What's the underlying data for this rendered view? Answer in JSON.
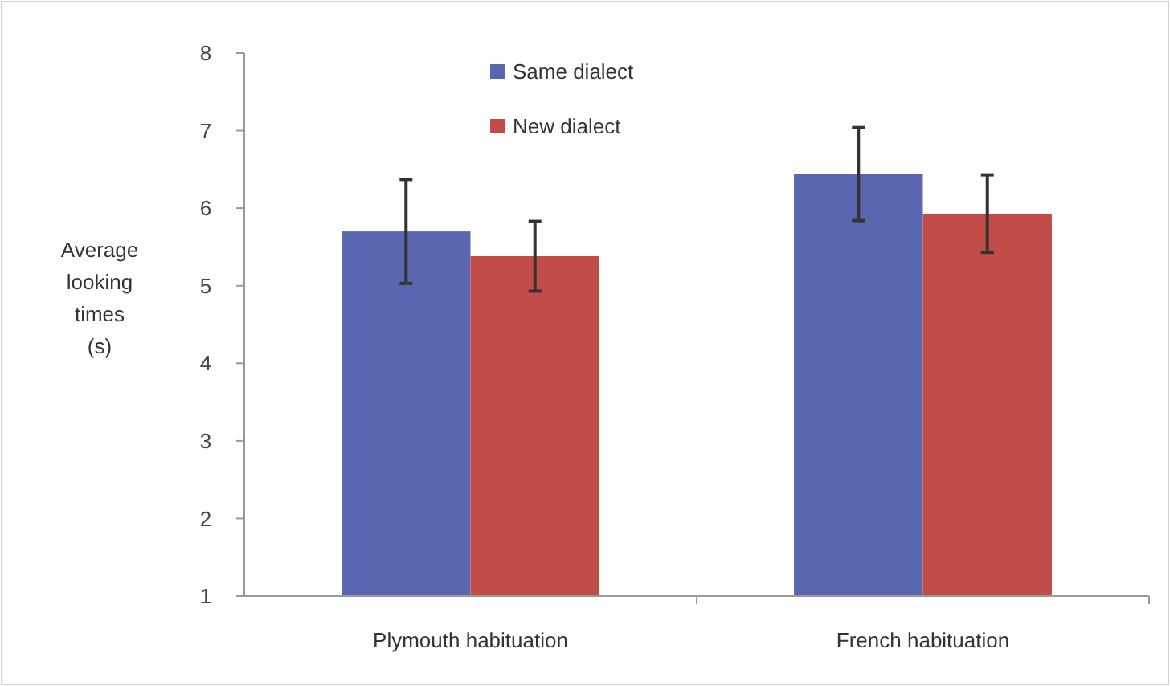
{
  "chart_data": {
    "type": "bar",
    "ylabel": "Average looking times (s)",
    "categories": [
      "Plymouth habituation",
      "French habituation"
    ],
    "series": [
      {
        "name": "Same dialect",
        "color": "#5b66b0",
        "values": [
          5.7,
          6.44
        ],
        "errors": [
          0.67,
          0.6
        ]
      },
      {
        "name": "New dialect",
        "color": "#c24d48",
        "values": [
          5.38,
          5.93
        ],
        "errors": [
          0.45,
          0.5
        ]
      }
    ],
    "ylim": [
      1,
      8
    ],
    "yticks": [
      1,
      2,
      3,
      4,
      5,
      6,
      7,
      8
    ],
    "grid": false,
    "legend": "top"
  }
}
